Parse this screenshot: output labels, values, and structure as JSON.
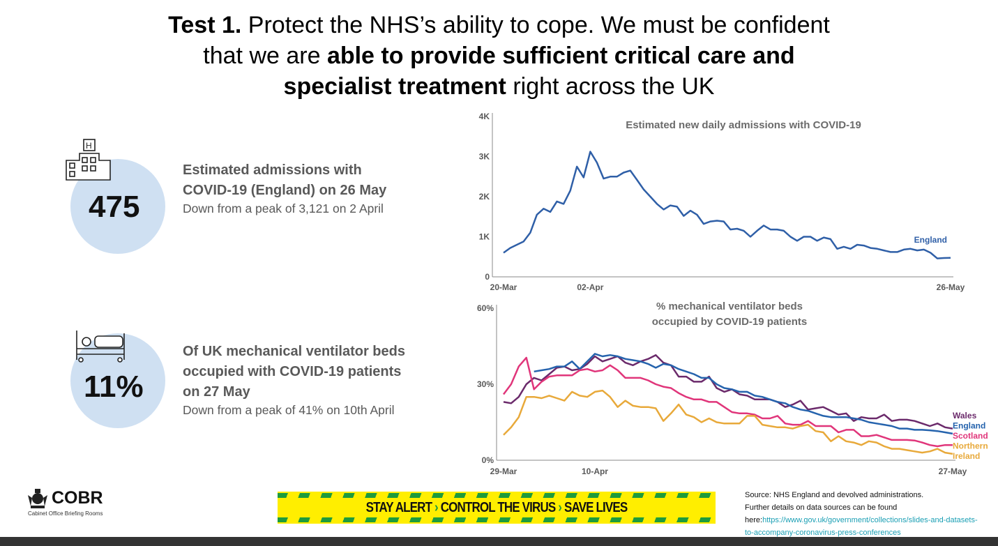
{
  "title": {
    "line1_bold": "Test 1.",
    "line1_rest": " Protect the NHS’s ability to cope. We must be confident",
    "line2_pre": "that we are ",
    "line2_bold": "able to provide sufficient critical care and",
    "line3_bold": "specialist treatment",
    "line3_rest": " right across the UK"
  },
  "stats": [
    {
      "icon": "hospital-icon",
      "value": "475",
      "heading1": "Estimated admissions with",
      "heading2": "COVID-19 (England) on 26 May",
      "sub": "Down from a peak of 3,121 on 2 April"
    },
    {
      "icon": "hospital-bed-icon",
      "value": "11%",
      "heading1": "Of UK mechanical ventilator beds",
      "heading2": "occupied with COVID-19 patients",
      "heading3": "on 27 May",
      "sub": "Down from a peak of 41% on 10th April"
    }
  ],
  "chart_data": [
    {
      "type": "line",
      "title": "Estimated new daily admissions with COVID-19",
      "ylim": [
        0,
        4000
      ],
      "yticks": [
        "0",
        "1K",
        "2K",
        "3K",
        "4K"
      ],
      "xticks": [
        "20-Mar",
        "02-Apr",
        "26-May"
      ],
      "xtick_index": [
        0,
        13,
        67
      ],
      "series": [
        {
          "name": "England",
          "color": "#2f5fa7",
          "values": [
            600,
            720,
            800,
            880,
            1100,
            1550,
            1700,
            1620,
            1880,
            1820,
            2150,
            2750,
            2480,
            3121,
            2850,
            2450,
            2500,
            2500,
            2600,
            2650,
            2420,
            2180,
            2000,
            1820,
            1680,
            1780,
            1750,
            1520,
            1650,
            1550,
            1320,
            1380,
            1400,
            1380,
            1180,
            1200,
            1150,
            1000,
            1150,
            1280,
            1180,
            1180,
            1150,
            1000,
            900,
            1000,
            1000,
            900,
            980,
            940,
            700,
            750,
            700,
            800,
            780,
            720,
            700,
            660,
            620,
            620,
            680,
            700,
            660,
            680,
            600,
            460,
            470,
            475
          ]
        }
      ]
    },
    {
      "type": "line",
      "title": "% mechanical ventilator beds",
      "title2": "occupied by COVID-19 patients",
      "ylim": [
        0,
        60
      ],
      "yticks": [
        "0%",
        "30%",
        "60%"
      ],
      "xticks": [
        "29-Mar",
        "10-Apr",
        "27-May"
      ],
      "xtick_index": [
        0,
        12,
        59
      ],
      "npoints": 60,
      "series": [
        {
          "name": "Wales",
          "color": "#6b2a6b",
          "values": [
            23,
            22.5,
            25,
            30,
            32.5,
            31.5,
            34,
            36.5,
            37,
            35.5,
            36,
            38,
            41,
            39,
            40,
            41,
            38.5,
            37.5,
            39,
            40,
            41.5,
            38.5,
            37.5,
            33,
            33,
            31,
            31,
            33,
            28.5,
            27,
            28,
            26,
            25.5,
            24,
            24,
            24,
            23,
            21,
            22,
            23.5,
            20,
            20.5,
            21,
            19.5,
            18,
            18.5,
            15.5,
            17,
            16.5,
            16.5,
            18,
            15.5,
            16,
            16,
            15.5,
            14.5,
            13.5,
            14.5,
            13,
            12.5
          ]
        },
        {
          "name": "England",
          "color": "#2563ad",
          "values": [
            null,
            null,
            null,
            null,
            35,
            35.5,
            36,
            37,
            37,
            39,
            36,
            39,
            42,
            41,
            41.5,
            41,
            40,
            39.5,
            39,
            38,
            36.5,
            38,
            37.5,
            36,
            35,
            34,
            32.5,
            32.5,
            30,
            28.5,
            28,
            27,
            27,
            25.5,
            25,
            24,
            23,
            22.5,
            21,
            20,
            19.5,
            18.5,
            17.5,
            17,
            17,
            17,
            16.5,
            16,
            15,
            14.5,
            14,
            13.5,
            12.5,
            12.5,
            12,
            12,
            11.8,
            11.5,
            11,
            10.5
          ]
        },
        {
          "name": "Scotland",
          "color": "#e0357a",
          "values": [
            26,
            30,
            37,
            40.5,
            28,
            31,
            33,
            33.5,
            33.5,
            33.5,
            35.5,
            36,
            35,
            35.5,
            37.5,
            35.5,
            32.5,
            32.5,
            32.5,
            31.5,
            30,
            29,
            28.5,
            26.5,
            25,
            24,
            24,
            23,
            23,
            21,
            19,
            18.5,
            18.5,
            18,
            16.5,
            16.5,
            17.5,
            14.5,
            14,
            14,
            15.5,
            13.5,
            13.5,
            13.5,
            11,
            12,
            12,
            9.5,
            9.5,
            10,
            9,
            8,
            8,
            8,
            7.8,
            7,
            6,
            5.5,
            6,
            6
          ]
        },
        {
          "name": "Northern",
          "name2": "Ireland",
          "color": "#e8a93a",
          "values": [
            10,
            13,
            17,
            25,
            25,
            24.5,
            25.5,
            24.5,
            23.5,
            27,
            25.5,
            25,
            27,
            27.5,
            25,
            21,
            23.5,
            21.5,
            21,
            21,
            20.5,
            15.5,
            18.5,
            22,
            18,
            17,
            15,
            16.5,
            15,
            14.5,
            14.5,
            14.5,
            17.5,
            17.5,
            14,
            13.5,
            13,
            13,
            12.5,
            13.5,
            14,
            11.5,
            11,
            7.5,
            9.5,
            7.5,
            7,
            6,
            7.5,
            7,
            5.5,
            4.5,
            4.5,
            4,
            3.5,
            3,
            3.5,
            4.5,
            3,
            2.5
          ]
        }
      ]
    }
  ],
  "banner": {
    "part1": "STAY ALERT",
    "part2": "CONTROL THE VIRUS",
    "part3": "SAVE LIVES",
    "arrow": "›"
  },
  "logo": {
    "name": "COBR",
    "sub": "Cabinet Office Briefing Rooms"
  },
  "source": {
    "line1": "Source: NHS England and devolved administrations.",
    "line2": "Further details on data sources can be found",
    "line3_pre": "here:",
    "link": "https://www.gov.uk/government/collections/slides-and-datasets- to-accompany-coronavirus-press-conferences"
  }
}
